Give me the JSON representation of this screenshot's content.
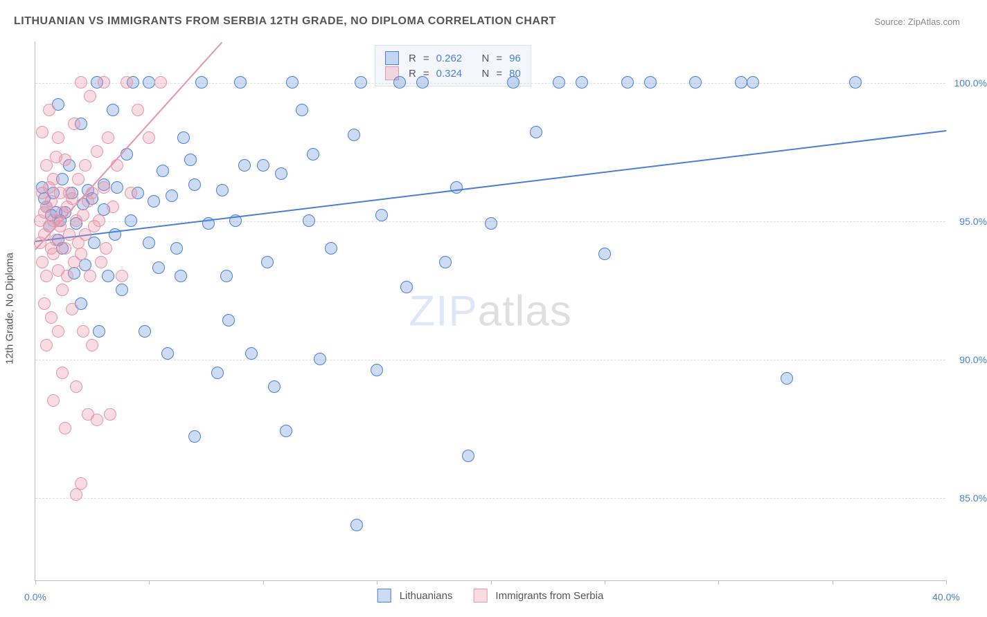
{
  "title": "LITHUANIAN VS IMMIGRANTS FROM SERBIA 12TH GRADE, NO DIPLOMA CORRELATION CHART",
  "source": "Source: ZipAtlas.com",
  "watermark": {
    "part1": "ZIP",
    "part2": "atlas"
  },
  "chart": {
    "type": "scatter",
    "y_axis_title": "12th Grade, No Diploma",
    "background_color": "#ffffff",
    "grid_color": "#dddddd",
    "axis_color": "#bbbbbb",
    "label_color": "#555555",
    "value_color": "#4a7fd4",
    "axis_fontsize": 15,
    "tick_fontsize": 14,
    "xlim": [
      0,
      40
    ],
    "ylim": [
      82,
      101.5
    ],
    "x_ticks": [
      0,
      5,
      10,
      15,
      20,
      25,
      30,
      35,
      40
    ],
    "x_tick_labels": {
      "0": "0.0%",
      "40": "40.0%"
    },
    "y_ticks": [
      85,
      90,
      95,
      100
    ],
    "y_tick_labels": {
      "85": "85.0%",
      "90": "90.0%",
      "95": "95.0%",
      "100": "100.0%"
    },
    "marker_radius": 9,
    "marker_fill_opacity": 0.28,
    "marker_stroke_width": 1.5,
    "line_width": 2,
    "series": [
      {
        "id": "lithuanians",
        "label": "Lithuanians",
        "color": "#4a7fd4",
        "fill": "rgba(74,127,212,0.28)",
        "stroke": "#4a7fd4",
        "R": "0.262",
        "N": "96",
        "trend": {
          "x1": 0,
          "y1": 94.3,
          "x2": 40,
          "y2": 98.3
        },
        "points": [
          [
            0.3,
            96.2
          ],
          [
            0.4,
            95.8
          ],
          [
            0.5,
            95.5
          ],
          [
            0.6,
            94.8
          ],
          [
            0.7,
            95.2
          ],
          [
            0.8,
            96.0
          ],
          [
            0.9,
            95.3
          ],
          [
            1.0,
            94.3
          ],
          [
            1.0,
            99.2
          ],
          [
            1.1,
            95.0
          ],
          [
            1.2,
            94.0
          ],
          [
            1.2,
            96.5
          ],
          [
            1.3,
            95.3
          ],
          [
            1.5,
            97.0
          ],
          [
            1.6,
            96.0
          ],
          [
            1.7,
            93.1
          ],
          [
            1.8,
            94.9
          ],
          [
            2.0,
            92.0
          ],
          [
            2.0,
            98.5
          ],
          [
            2.1,
            95.6
          ],
          [
            2.2,
            93.4
          ],
          [
            2.3,
            96.1
          ],
          [
            2.5,
            95.8
          ],
          [
            2.6,
            94.2
          ],
          [
            2.7,
            100.0
          ],
          [
            2.8,
            91.0
          ],
          [
            3.0,
            95.4
          ],
          [
            3.0,
            96.3
          ],
          [
            3.2,
            93.0
          ],
          [
            3.4,
            99.0
          ],
          [
            3.5,
            94.5
          ],
          [
            3.6,
            96.2
          ],
          [
            3.8,
            92.5
          ],
          [
            4.0,
            97.4
          ],
          [
            4.2,
            95.0
          ],
          [
            4.5,
            96.0
          ],
          [
            4.8,
            91.0
          ],
          [
            5.0,
            94.2
          ],
          [
            5.0,
            100.0
          ],
          [
            5.2,
            95.7
          ],
          [
            5.4,
            93.3
          ],
          [
            5.6,
            96.8
          ],
          [
            5.8,
            90.2
          ],
          [
            6.0,
            95.9
          ],
          [
            6.2,
            94.0
          ],
          [
            6.4,
            93.0
          ],
          [
            6.5,
            98.0
          ],
          [
            6.8,
            97.2
          ],
          [
            7.0,
            87.2
          ],
          [
            7.0,
            96.3
          ],
          [
            7.3,
            100.0
          ],
          [
            7.6,
            94.9
          ],
          [
            8.0,
            89.5
          ],
          [
            8.2,
            96.1
          ],
          [
            8.4,
            93.0
          ],
          [
            8.5,
            91.4
          ],
          [
            8.8,
            95.0
          ],
          [
            9.0,
            100.0
          ],
          [
            9.2,
            97.0
          ],
          [
            9.5,
            90.2
          ],
          [
            10.0,
            97.0
          ],
          [
            10.2,
            93.5
          ],
          [
            10.5,
            89.0
          ],
          [
            10.8,
            96.7
          ],
          [
            11.0,
            87.4
          ],
          [
            11.3,
            100.0
          ],
          [
            11.7,
            99.0
          ],
          [
            12.0,
            95.0
          ],
          [
            12.2,
            97.4
          ],
          [
            12.5,
            90.0
          ],
          [
            13.0,
            94.0
          ],
          [
            14.0,
            98.1
          ],
          [
            14.1,
            84.0
          ],
          [
            14.3,
            100.0
          ],
          [
            15.0,
            89.6
          ],
          [
            15.2,
            95.2
          ],
          [
            16.0,
            100.0
          ],
          [
            16.3,
            92.6
          ],
          [
            17.0,
            100.0
          ],
          [
            18.0,
            93.5
          ],
          [
            18.5,
            96.2
          ],
          [
            19.0,
            86.5
          ],
          [
            20.0,
            94.9
          ],
          [
            21.0,
            100.0
          ],
          [
            22.0,
            98.2
          ],
          [
            23.0,
            100.0
          ],
          [
            24.0,
            100.0
          ],
          [
            25.0,
            93.8
          ],
          [
            26.0,
            100.0
          ],
          [
            27.0,
            100.0
          ],
          [
            29.0,
            100.0
          ],
          [
            31.0,
            100.0
          ],
          [
            31.5,
            100.0
          ],
          [
            33.0,
            89.3
          ],
          [
            36.0,
            100.0
          ],
          [
            4.3,
            100.0
          ]
        ]
      },
      {
        "id": "serbia",
        "label": "Immigrants from Serbia",
        "color": "#e695a8",
        "fill": "rgba(230,149,168,0.32)",
        "stroke": "#e695a8",
        "R": "0.324",
        "N": "80",
        "trend": {
          "x1": 0,
          "y1": 94.0,
          "x2": 8.2,
          "y2": 101.5
        },
        "points": [
          [
            0.2,
            94.2
          ],
          [
            0.2,
            95.0
          ],
          [
            0.3,
            93.5
          ],
          [
            0.3,
            96.0
          ],
          [
            0.3,
            98.2
          ],
          [
            0.4,
            94.5
          ],
          [
            0.4,
            92.0
          ],
          [
            0.4,
            95.3
          ],
          [
            0.5,
            93.0
          ],
          [
            0.5,
            95.5
          ],
          [
            0.5,
            97.0
          ],
          [
            0.5,
            90.5
          ],
          [
            0.6,
            94.8
          ],
          [
            0.6,
            96.2
          ],
          [
            0.6,
            99.0
          ],
          [
            0.7,
            94.0
          ],
          [
            0.7,
            95.7
          ],
          [
            0.7,
            91.5
          ],
          [
            0.8,
            93.8
          ],
          [
            0.8,
            95.0
          ],
          [
            0.8,
            96.5
          ],
          [
            0.8,
            88.5
          ],
          [
            0.9,
            94.3
          ],
          [
            0.9,
            97.3
          ],
          [
            1.0,
            95.0
          ],
          [
            1.0,
            93.2
          ],
          [
            1.0,
            98.0
          ],
          [
            1.0,
            91.0
          ],
          [
            1.1,
            94.8
          ],
          [
            1.1,
            96.0
          ],
          [
            1.2,
            95.3
          ],
          [
            1.2,
            89.5
          ],
          [
            1.2,
            92.5
          ],
          [
            1.3,
            94.0
          ],
          [
            1.3,
            97.2
          ],
          [
            1.3,
            87.5
          ],
          [
            1.4,
            95.5
          ],
          [
            1.4,
            93.0
          ],
          [
            1.5,
            96.0
          ],
          [
            1.5,
            94.5
          ],
          [
            1.6,
            91.8
          ],
          [
            1.6,
            95.8
          ],
          [
            1.7,
            93.5
          ],
          [
            1.7,
            98.5
          ],
          [
            1.8,
            95.0
          ],
          [
            1.8,
            89.0
          ],
          [
            1.8,
            85.1
          ],
          [
            1.9,
            94.2
          ],
          [
            1.9,
            96.5
          ],
          [
            2.0,
            93.8
          ],
          [
            2.0,
            100.0
          ],
          [
            2.0,
            85.5
          ],
          [
            2.1,
            95.2
          ],
          [
            2.1,
            91.0
          ],
          [
            2.2,
            94.5
          ],
          [
            2.2,
            97.0
          ],
          [
            2.3,
            88.0
          ],
          [
            2.3,
            95.7
          ],
          [
            2.4,
            99.5
          ],
          [
            2.4,
            93.0
          ],
          [
            2.5,
            96.0
          ],
          [
            2.5,
            90.5
          ],
          [
            2.6,
            94.8
          ],
          [
            2.7,
            87.8
          ],
          [
            2.7,
            97.5
          ],
          [
            2.8,
            95.0
          ],
          [
            2.9,
            93.5
          ],
          [
            3.0,
            100.0
          ],
          [
            3.0,
            96.2
          ],
          [
            3.1,
            94.0
          ],
          [
            3.2,
            98.0
          ],
          [
            3.3,
            88.0
          ],
          [
            3.4,
            95.5
          ],
          [
            3.6,
            97.0
          ],
          [
            3.8,
            93.0
          ],
          [
            4.0,
            100.0
          ],
          [
            4.2,
            96.0
          ],
          [
            4.5,
            99.0
          ],
          [
            5.0,
            98.0
          ],
          [
            5.5,
            100.0
          ]
        ]
      }
    ],
    "legend": {
      "items": [
        {
          "label": "Lithuanians",
          "color_fill": "rgba(74,127,212,0.28)",
          "color_stroke": "#4a7fd4"
        },
        {
          "label": "Immigrants from Serbia",
          "color_fill": "rgba(230,149,168,0.32)",
          "color_stroke": "#e695a8"
        }
      ]
    },
    "stats": {
      "R_label": "R",
      "N_label": "N",
      "eq": "="
    }
  }
}
